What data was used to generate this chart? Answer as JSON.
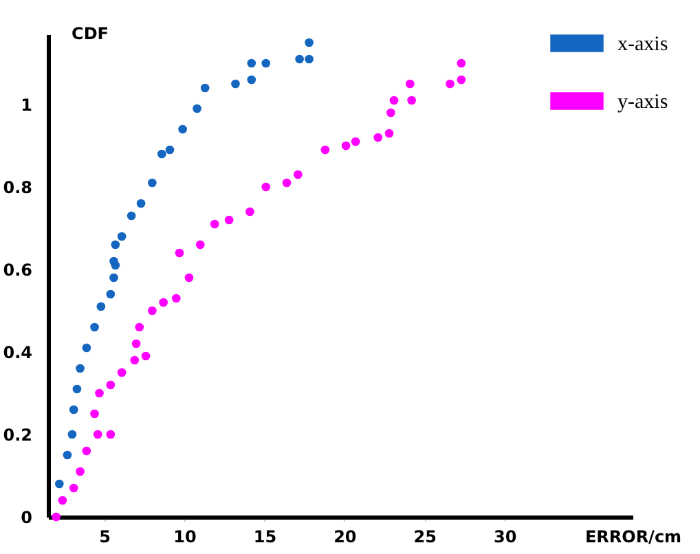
{
  "chart_data": {
    "type": "scatter",
    "xlabel": "ERROR/cm",
    "ylabel": "CDF",
    "xlim": [
      1.5,
      38
    ],
    "xticks": [
      5,
      10,
      15,
      20,
      25,
      30
    ],
    "ylim": [
      0,
      1.17
    ],
    "yticks": [
      0,
      0.2,
      0.4,
      0.6,
      0.8,
      1
    ],
    "grid": false,
    "legend": "top right",
    "marker": "circle",
    "series": [
      {
        "name": "x-axis",
        "color": "#1466c0",
        "x": [
          2.2,
          2.7,
          3.0,
          3.1,
          3.3,
          3.5,
          3.9,
          4.4,
          4.8,
          5.4,
          5.6,
          5.7,
          5.6,
          5.7,
          6.1,
          6.7,
          7.3,
          8.0,
          8.6,
          9.1,
          9.9,
          10.8,
          11.3,
          13.2,
          14.2,
          14.2,
          15.1,
          17.2,
          17.8,
          17.8
        ],
        "values": [
          0.08,
          0.15,
          0.2,
          0.26,
          0.31,
          0.36,
          0.41,
          0.46,
          0.51,
          0.54,
          0.58,
          0.61,
          0.62,
          0.66,
          0.68,
          0.73,
          0.76,
          0.81,
          0.88,
          0.89,
          0.94,
          0.99,
          1.04,
          1.05,
          1.06,
          1.1,
          1.1,
          1.11,
          1.11,
          1.15
        ]
      },
      {
        "name": "y-axis",
        "color": "#ff00ff",
        "x": [
          2.0,
          2.4,
          3.1,
          3.5,
          3.9,
          4.6,
          5.4,
          4.4,
          4.7,
          5.4,
          6.1,
          6.9,
          7.6,
          7.0,
          7.2,
          8.0,
          8.7,
          9.5,
          10.3,
          9.7,
          11.0,
          11.9,
          12.8,
          14.1,
          15.1,
          16.4,
          17.1,
          18.8,
          20.1,
          20.7,
          22.1,
          22.8,
          22.9,
          23.1,
          24.2,
          24.1,
          26.6,
          27.3,
          27.3
        ],
        "values": [
          0.0,
          0.04,
          0.07,
          0.11,
          0.16,
          0.2,
          0.2,
          0.25,
          0.3,
          0.32,
          0.35,
          0.38,
          0.39,
          0.42,
          0.46,
          0.5,
          0.52,
          0.53,
          0.58,
          0.64,
          0.66,
          0.71,
          0.72,
          0.74,
          0.8,
          0.81,
          0.83,
          0.89,
          0.9,
          0.91,
          0.92,
          0.93,
          0.98,
          1.01,
          1.01,
          1.05,
          1.05,
          1.06,
          1.1
        ]
      }
    ]
  }
}
